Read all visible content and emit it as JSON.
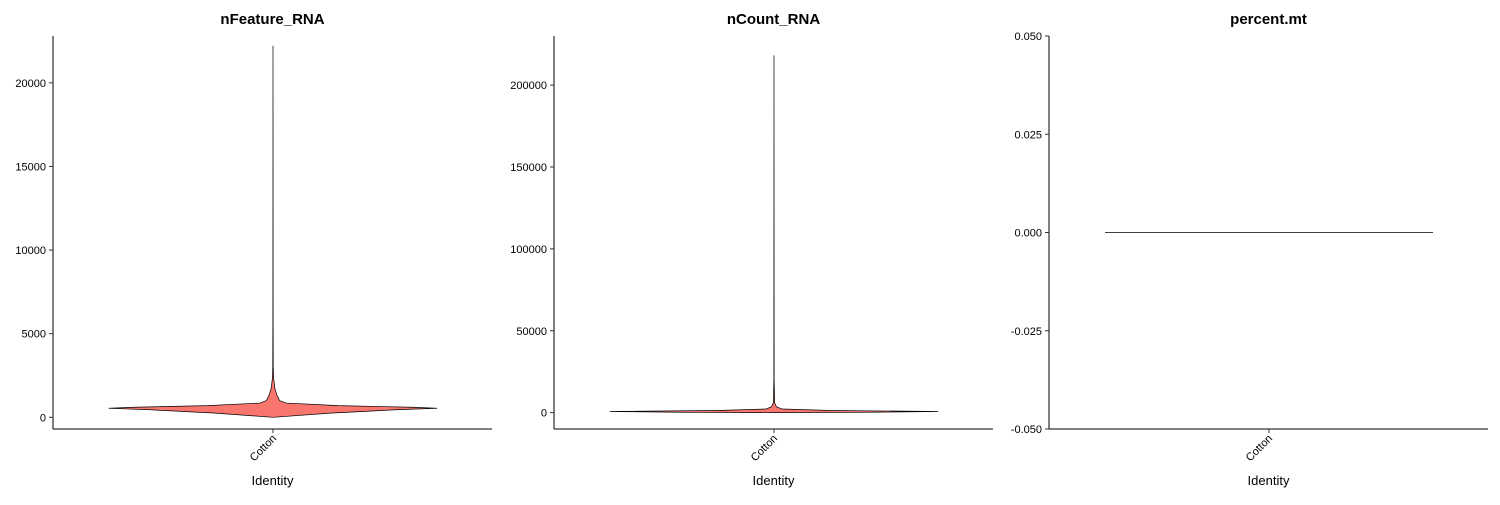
{
  "chart_data": [
    {
      "type": "violin",
      "title": "nFeature_RNA",
      "xlabel": "Identity",
      "ylabel": "",
      "categories": [
        "Cotton"
      ],
      "ylim": [
        -700,
        22800
      ],
      "yticks": [
        0,
        5000,
        10000,
        15000,
        20000
      ],
      "ytick_labels": [
        "0",
        "5000",
        "10000",
        "15000",
        "20000"
      ],
      "fill": "#F8766D",
      "profile": [
        {
          "y": 0,
          "w": 0
        },
        {
          "y": 250,
          "w": 0.35
        },
        {
          "y": 450,
          "w": 0.75
        },
        {
          "y": 540,
          "w": 1.0
        },
        {
          "y": 600,
          "w": 0.85
        },
        {
          "y": 700,
          "w": 0.4
        },
        {
          "y": 850,
          "w": 0.08
        },
        {
          "y": 1000,
          "w": 0.04
        },
        {
          "y": 1300,
          "w": 0.025
        },
        {
          "y": 1700,
          "w": 0.012
        },
        {
          "y": 2300,
          "w": 0.004
        },
        {
          "y": 3000,
          "w": 0.0015
        },
        {
          "y": 6000,
          "w": 0.0008
        },
        {
          "y": 22200,
          "w": 0
        }
      ]
    },
    {
      "type": "violin",
      "title": "nCount_RNA",
      "xlabel": "Identity",
      "ylabel": "",
      "categories": [
        "Cotton"
      ],
      "ylim": [
        -10000,
        230000
      ],
      "yticks": [
        0,
        50000,
        100000,
        150000,
        200000
      ],
      "ytick_labels": [
        "0",
        "50000",
        "100000",
        "150000",
        "200000"
      ],
      "fill": "#F8766D",
      "profile": [
        {
          "y": 0,
          "w": 0
        },
        {
          "y": 200,
          "w": 0.55
        },
        {
          "y": 700,
          "w": 1.0
        },
        {
          "y": 1300,
          "w": 0.35
        },
        {
          "y": 2200,
          "w": 0.05
        },
        {
          "y": 3500,
          "w": 0.015
        },
        {
          "y": 6000,
          "w": 0.004
        },
        {
          "y": 20000,
          "w": 0.001
        },
        {
          "y": 218000,
          "w": 0
        }
      ]
    },
    {
      "type": "violin",
      "title": "percent.mt",
      "xlabel": "Identity",
      "ylabel": "",
      "categories": [
        "Cotton"
      ],
      "ylim": [
        -0.05,
        0.05
      ],
      "yticks": [
        -0.05,
        -0.025,
        0.0,
        0.025,
        0.05
      ],
      "ytick_labels": [
        "-0.050",
        "-0.025",
        "0.000",
        "0.025",
        "0.050"
      ],
      "fill": "#F8766D",
      "profile": [
        {
          "y": 0,
          "w": 1.0
        }
      ]
    }
  ]
}
